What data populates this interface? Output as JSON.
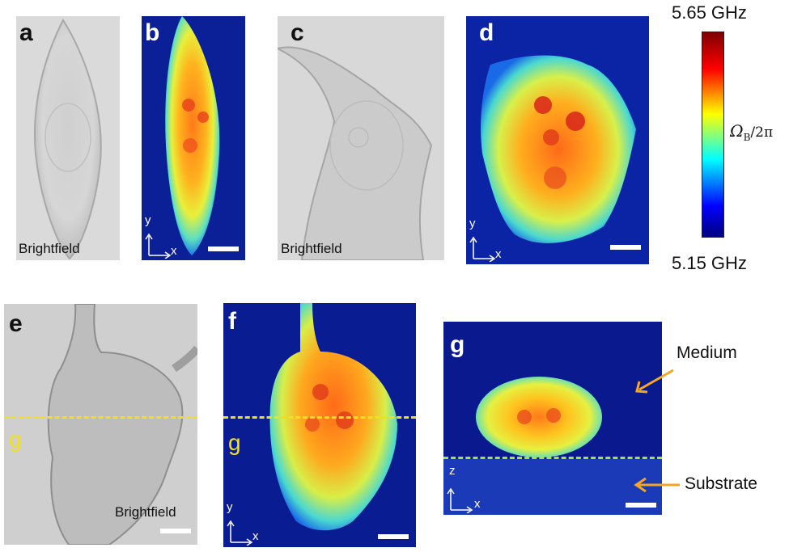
{
  "panels": {
    "a": {
      "letter": "a",
      "label": "Brightfield"
    },
    "b": {
      "letter": "b",
      "axis_y": "y",
      "axis_x": "x"
    },
    "c": {
      "letter": "c",
      "label": "Brightfield"
    },
    "d": {
      "letter": "d",
      "axis_y": "y",
      "axis_x": "x"
    },
    "e": {
      "letter": "e",
      "label": "Brightfield",
      "line_label": "g"
    },
    "f": {
      "letter": "f",
      "axis_y": "y",
      "axis_x": "x",
      "line_label": "g"
    },
    "g": {
      "letter": "g",
      "axis_y": "z",
      "axis_x": "x"
    }
  },
  "colorbar": {
    "top_label": "5.65 GHz",
    "bottom_label": "5.15 GHz",
    "symbol": "Ω",
    "subscript": "B",
    "denominator": "/2π",
    "colors": [
      "#00007f",
      "#0000ff",
      "#00ffff",
      "#ffff00",
      "#ff0000",
      "#7f0000"
    ]
  },
  "annotations": {
    "medium": "Medium",
    "substrate": "Substrate",
    "arrow_color": "#f5a623",
    "line_color": "#f2e01e"
  }
}
